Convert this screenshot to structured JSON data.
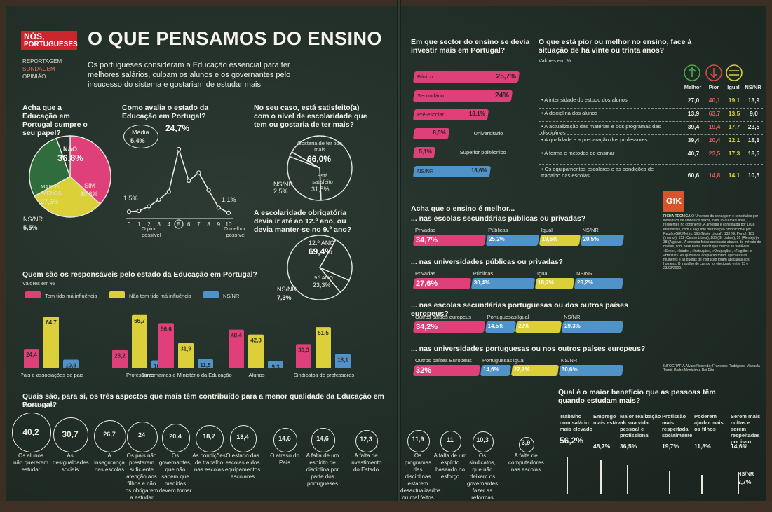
{
  "header": {
    "logo_line1": "NÓS,",
    "logo_line2": "PORTUGUESES",
    "menu": [
      "REPORTAGEM",
      "SONDAGEM",
      "OPINIÃO"
    ],
    "title": "O QUE PENSAMOS DO ENSINO",
    "lead": "Os portugueses consideram a Educação essencial para ter melhores salários, culpam os alunos e os governantes pelo insucesso do sistema e gostariam de estudar mais"
  },
  "colors": {
    "pink": "#e0407a",
    "yellow": "#dcd03a",
    "blue": "#4f93c9",
    "green": "#2f6e3c"
  },
  "chart_data": [
    {
      "type": "pie",
      "title": "Acha que a Educação em Portugal cumpre o seu papel?",
      "categories": [
        "NÃO",
        "SIM",
        "MAIS OU MENOS",
        "NS/NR"
      ],
      "values": [
        36.8,
        30.3,
        27.5,
        5.5
      ],
      "labels": [
        "36,8%",
        "30,3%",
        "27,5%",
        "5,5%"
      ]
    },
    {
      "type": "line",
      "title": "Como avalia o estado da Educação em Portugal?",
      "x": [
        0,
        1,
        2,
        3,
        4,
        5,
        6,
        7,
        8,
        9,
        10
      ],
      "y": [
        1.5,
        1.8,
        3.5,
        6.0,
        9.0,
        24.7,
        13.0,
        16.0,
        9.5,
        3.0,
        1.1
      ],
      "labels": {
        "first": "1,5%",
        "peak": "24,7%",
        "last": "1,1%"
      },
      "media_label": "Média",
      "media_value": "5,4%",
      "xlabel_left": "O pior possível",
      "xlabel_right": "O melhor possível"
    },
    {
      "type": "pie",
      "title": "No seu caso, está satisfeito(a) com o nível de escolaridade que tem ou gostaria de ter mais?",
      "categories": [
        "Gostaria de ter tido mais",
        "Está satisfeito",
        "NS/NR"
      ],
      "values": [
        66.0,
        31.5,
        2.5
      ],
      "labels": [
        "66,0%",
        "31,5%",
        "2,5%"
      ]
    },
    {
      "type": "pie",
      "title": "A escolaridade obrigatória devia ir até ao 12.º ano, ou devia manter-se no 9.º ano?",
      "categories": [
        "12.º ANO",
        "9.º ANO",
        "NS/NR"
      ],
      "values": [
        69.4,
        23.3,
        7.3
      ],
      "labels": [
        "69,4%",
        "23,3%",
        "7,3%"
      ]
    },
    {
      "type": "bar",
      "title": "Quem são os responsáveis pelo estado da Educação em Portugal?",
      "subtitle": "Valores em %",
      "categories": [
        "Pais e associações de pais",
        "Professores",
        "Governantes e Ministério da Educação",
        "Alunos",
        "Sindicatos de professores"
      ],
      "series": [
        {
          "name": "Tem tido má influência",
          "values": [
            24.4,
            23.2,
            56.6,
            48.4,
            30.3
          ]
        },
        {
          "name": "Não tem tido má influência",
          "values": [
            64.7,
            66.7,
            31.9,
            42.3,
            51.5
          ]
        },
        {
          "name": "NS/NR",
          "values": [
            10.9,
            10.1,
            11.5,
            9.3,
            18.1
          ]
        }
      ],
      "ylim": [
        0,
        70
      ]
    },
    {
      "type": "bar",
      "title": "Em que sector do ensino se devia investir mais em Portugal?",
      "categories": [
        "Básico",
        "Secundário",
        "Pré-escolar",
        "Universitário",
        "Superior politécnico",
        "NS/NR"
      ],
      "values": [
        25.7,
        24,
        18.1,
        8.5,
        5.1,
        18.6
      ],
      "labels": [
        "25,7%",
        "24%",
        "18,1%",
        "8,5%",
        "5,1%",
        "18,6%"
      ]
    },
    {
      "type": "table",
      "title": "O que está pior ou melhor no ensino, face à situação de há vinte ou trinta anos?",
      "subtitle": "Valores em %",
      "columns": [
        "Melhor",
        "Pior",
        "Igual",
        "NS/NR"
      ],
      "rows": [
        {
          "label": "A intensidade do estudo dos alunos",
          "values": [
            "27,0",
            "40,1",
            "19,1",
            "13,9"
          ]
        },
        {
          "label": "A disciplina dos alunos",
          "values": [
            "13,9",
            "63,7",
            "13,5",
            "9,0"
          ]
        },
        {
          "label": "A actualização das matérias e dos programas das disciplinas",
          "values": [
            "39,4",
            "19,4",
            "17,7",
            "23,5"
          ]
        },
        {
          "label": "A qualidade e a preparação dos professores",
          "values": [
            "39,4",
            "20,4",
            "22,1",
            "18,1"
          ]
        },
        {
          "label": "A forma e métodos de ensinar",
          "values": [
            "40,7",
            "23,5",
            "17,3",
            "18,5"
          ]
        },
        {
          "label": "Os equipamentos escolares e as condições de trabalho nas escolas",
          "values": [
            "60,6",
            "14,8",
            "14,1",
            "10,5"
          ]
        }
      ]
    },
    {
      "type": "bar",
      "title": "Acha que o ensino é melhor...",
      "groups": [
        {
          "title": "... nas escolas secundárias públicas ou privadas?",
          "categories": [
            "Privadas",
            "Públicas",
            "Igual",
            "NS/NR"
          ],
          "values": [
            34.7,
            25.2,
            19.6,
            20.5
          ],
          "labels": [
            "34,7%",
            "25,2%",
            "19,6%",
            "20,5%"
          ]
        },
        {
          "title": "... nas universidades públicas ou privadas?",
          "categories": [
            "Privadas",
            "Públicas",
            "Igual",
            "NS/NR"
          ],
          "values": [
            27.6,
            30.4,
            18.7,
            23.2
          ],
          "labels": [
            "27,6%",
            "30,4%",
            "18,7%",
            "23,2%"
          ]
        },
        {
          "title": "... nas escolas secundárias portuguesas ou dos outros países europeus?",
          "categories": [
            "Outros países europeus",
            "Portuguesas",
            "Igual",
            "NS/NR"
          ],
          "values": [
            34.2,
            14.5,
            22,
            29.3
          ],
          "labels": [
            "34,2%",
            "14,5%",
            "22%",
            "29,3%"
          ]
        },
        {
          "title": "... nas universidades portuguesas ou nos outros países europeus?",
          "categories": [
            "Outros países Europeus",
            "Portuguesas",
            "Igual",
            "NS/NR"
          ],
          "values": [
            32,
            14.6,
            22.7,
            30.6
          ],
          "labels": [
            "32%",
            "14,6%",
            "22,7%",
            "30,6%"
          ]
        }
      ]
    },
    {
      "type": "bar",
      "title": "Quais são, para si, os três aspectos que mais têm contribuído para a menor qualidade da Educação em Portugal?",
      "subtitle": "Valores em %",
      "categories": [
        "Os alunos não quererem estudar",
        "As desigualdades sociais",
        "A insegurança nas escolas",
        "Os pais não prestarem suficiente atenção aos filhos e não os obrigarem a estudar",
        "Os governantes, que não sabem que medidas devem tomar",
        "As condições de trabalho nas escolas",
        "O estado das escolas e dos equipamentos escolares",
        "O atraso do País",
        "A falta de um espírito de disciplina por parte dos portugueses",
        "A falta de investimento do Estado",
        "Os programas das disciplinas estarem desactualizados ou mal feitos",
        "A falta de um espírito baseado no esforço",
        "Os sindicatos, que não deixam os governantes fazer as reformas necessárias",
        "A falta de computadores nas escolas"
      ],
      "values": [
        40.2,
        30.7,
        26.7,
        24,
        20.4,
        18.7,
        18.4,
        14.6,
        14.6,
        12.3,
        11.9,
        11,
        10.3,
        3.9
      ],
      "labels": [
        "40,2",
        "30,7",
        "26,7",
        "24",
        "20,4",
        "18,7",
        "18,4",
        "14,6",
        "14,6",
        "12,3",
        "11,9",
        "11",
        "10,3",
        "3,9"
      ]
    },
    {
      "type": "bar",
      "title": "Qual é o maior benefício que as pessoas têm quando estudam mais?",
      "categories": [
        "Trabalho com salário mais elevado",
        "Emprego mais estável",
        "Maior realização na sua vida pessoal e profissional",
        "Profissão mais respeitada socialmente",
        "Poderem ajudar mais os filhos",
        "Serem mais cultas e serem respeitadas por isso",
        "NS/NR"
      ],
      "values": [
        56.2,
        48.7,
        36.5,
        19.7,
        11.8,
        14.6,
        2.7
      ],
      "labels": [
        "56,2%",
        "48,7%",
        "36,5%",
        "19,7%",
        "11,8%",
        "14,6%",
        "2,7%"
      ]
    }
  ],
  "legend_labels": {
    "bad": "Tem tido má influência",
    "notbad": "Não tem tido má influência",
    "nsnr": "NS/NR"
  },
  "gfk": {
    "logo": "GfK",
    "title": "FICHA TÉCNICA",
    "text": "O Universo da sondagem é constituído por indivíduos de ambos os sexos, com 15 ou mais anos, residentes no continente. A amostra é constituída por 1038 entrevistas, com a seguinte distribuição proporcional por Região GfK Metris: 195 (Norte Litoral), 133 (G. Porto), 181 (Interior), 152 (Centro Litoral), 288 (G. Lisboa), 51 (Alentejo) e 38 (Algarve). A amostra foi seleccionada através do método de quotas, com base numa matriz que cruzou as variáveis «Sexo», «Idade», «Instrução», «Ocupação», «Região» e «Habitat». As quotas de ocupação foram aplicadas às mulheres e as quotas de instrução foram aplicadas aos homens. O trabalho de campo foi efectuado entre 13 e 23/03/2009.",
    "credits": "INFOGRAFIA Álvaro Rosendo; Francisco Rodrigues, Manuela Tomé; Pedro Monteiro e Rui Pita"
  },
  "labels": {
    "valores": "Valores em %",
    "pior_possivel": "O pior possível",
    "melhor_possivel": "O melhor possível",
    "sector_q": "Em que sector do ensino se devia investir mais em Portugal?",
    "nsnr": "NS/NR"
  }
}
